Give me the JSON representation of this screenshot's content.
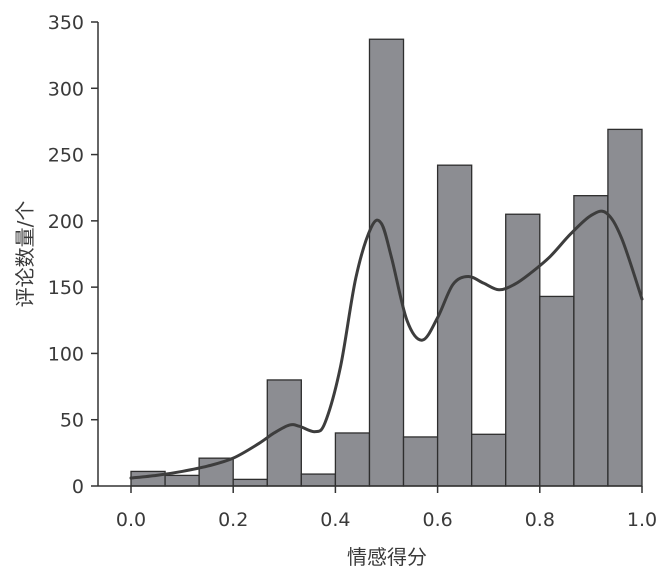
{
  "chart_data": {
    "type": "bar",
    "xlabel": "情感得分",
    "ylabel": "评论数量/个",
    "xlim": [
      0.0,
      1.0
    ],
    "ylim": [
      0,
      350
    ],
    "x_ticks": [
      "0.0",
      "0.2",
      "0.4",
      "0.6",
      "0.8",
      "1.0"
    ],
    "y_ticks": [
      "0",
      "50",
      "100",
      "150",
      "200",
      "250",
      "300",
      "350"
    ],
    "bin_width": 0.0667,
    "bins": [
      {
        "x0": 0.0,
        "x1": 0.0667,
        "value": 11
      },
      {
        "x0": 0.0667,
        "x1": 0.1333,
        "value": 8
      },
      {
        "x0": 0.1333,
        "x1": 0.2,
        "value": 21
      },
      {
        "x0": 0.2,
        "x1": 0.2667,
        "value": 5
      },
      {
        "x0": 0.2667,
        "x1": 0.3333,
        "value": 80
      },
      {
        "x0": 0.3333,
        "x1": 0.4,
        "value": 9
      },
      {
        "x0": 0.4,
        "x1": 0.4667,
        "value": 40
      },
      {
        "x0": 0.4667,
        "x1": 0.5333,
        "value": 337
      },
      {
        "x0": 0.5333,
        "x1": 0.6,
        "value": 37
      },
      {
        "x0": 0.6,
        "x1": 0.6667,
        "value": 242
      },
      {
        "x0": 0.6667,
        "x1": 0.7333,
        "value": 39
      },
      {
        "x0": 0.7333,
        "x1": 0.8,
        "value": 205
      },
      {
        "x0": 0.8,
        "x1": 0.8667,
        "value": 143
      },
      {
        "x0": 0.8667,
        "x1": 0.9333,
        "value": 219
      },
      {
        "x0": 0.9333,
        "x1": 1.0,
        "value": 269
      }
    ],
    "kde_curve": {
      "x": [
        0.0,
        0.05,
        0.1,
        0.15,
        0.2,
        0.25,
        0.28,
        0.31,
        0.33,
        0.36,
        0.38,
        0.41,
        0.44,
        0.47,
        0.49,
        0.51,
        0.54,
        0.57,
        0.6,
        0.63,
        0.66,
        0.69,
        0.72,
        0.75,
        0.78,
        0.82,
        0.86,
        0.9,
        0.93,
        0.96,
        1.0
      ],
      "y": [
        6,
        8,
        11,
        15,
        21,
        32,
        40,
        46,
        45,
        41,
        48,
        90,
        157,
        195,
        198,
        172,
        125,
        110,
        127,
        152,
        158,
        153,
        148,
        152,
        160,
        173,
        190,
        204,
        206,
        187,
        141
      ]
    },
    "colors": {
      "bar_fill": "#8c8d92",
      "bar_stroke": "#2e2e2e",
      "curve": "#3d3d3d",
      "axis": "#333333"
    }
  }
}
